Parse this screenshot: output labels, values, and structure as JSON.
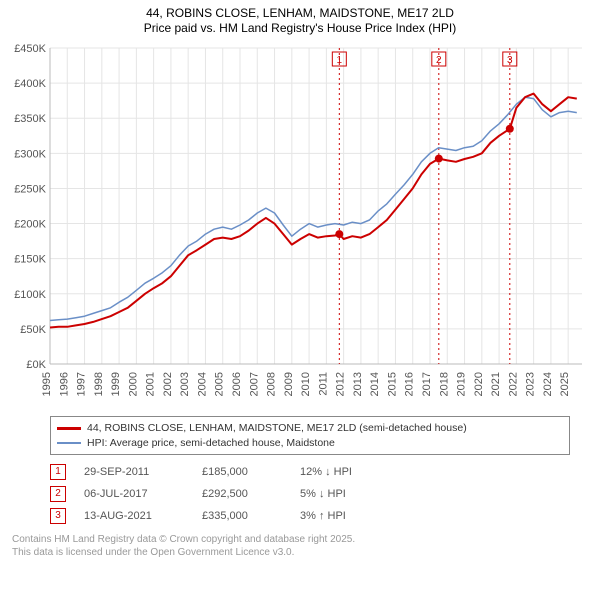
{
  "title": {
    "line1": "44, ROBINS CLOSE, LENHAM, MAIDSTONE, ME17 2LD",
    "line2": "Price paid vs. HM Land Registry's House Price Index (HPI)"
  },
  "chart": {
    "type": "line",
    "background_color": "#ffffff",
    "grid_color": "#e5e5e5",
    "axis_fontsize": 11,
    "xlim": [
      1995,
      2025.8
    ],
    "ylim": [
      0,
      450
    ],
    "ytick_step": 50,
    "y_prefix": "£",
    "y_suffix": "K",
    "x_ticks": [
      1995,
      1996,
      1997,
      1998,
      1999,
      2000,
      2001,
      2002,
      2003,
      2004,
      2005,
      2006,
      2007,
      2008,
      2009,
      2010,
      2011,
      2012,
      2013,
      2014,
      2015,
      2016,
      2017,
      2018,
      2019,
      2020,
      2021,
      2022,
      2023,
      2024,
      2025
    ],
    "series": [
      {
        "name": "price_paid",
        "color": "#cc0000",
        "width": 2,
        "legend": "44, ROBINS CLOSE, LENHAM, MAIDSTONE, ME17 2LD (semi-detached house)",
        "points": [
          [
            1995,
            52
          ],
          [
            1995.5,
            53
          ],
          [
            1996,
            53
          ],
          [
            1996.5,
            55
          ],
          [
            1997,
            57
          ],
          [
            1997.5,
            60
          ],
          [
            1998,
            64
          ],
          [
            1998.5,
            68
          ],
          [
            1999,
            74
          ],
          [
            1999.5,
            80
          ],
          [
            2000,
            90
          ],
          [
            2000.5,
            100
          ],
          [
            2001,
            108
          ],
          [
            2001.5,
            115
          ],
          [
            2002,
            125
          ],
          [
            2002.5,
            140
          ],
          [
            2003,
            155
          ],
          [
            2003.5,
            162
          ],
          [
            2004,
            170
          ],
          [
            2004.5,
            178
          ],
          [
            2005,
            180
          ],
          [
            2005.5,
            178
          ],
          [
            2006,
            182
          ],
          [
            2006.5,
            190
          ],
          [
            2007,
            200
          ],
          [
            2007.5,
            208
          ],
          [
            2008,
            200
          ],
          [
            2008.5,
            185
          ],
          [
            2009,
            170
          ],
          [
            2009.5,
            178
          ],
          [
            2010,
            185
          ],
          [
            2010.5,
            180
          ],
          [
            2011,
            182
          ],
          [
            2011.5,
            183
          ],
          [
            2011.75,
            185
          ],
          [
            2012,
            178
          ],
          [
            2012.5,
            182
          ],
          [
            2013,
            180
          ],
          [
            2013.5,
            185
          ],
          [
            2014,
            195
          ],
          [
            2014.5,
            205
          ],
          [
            2015,
            220
          ],
          [
            2015.5,
            235
          ],
          [
            2016,
            250
          ],
          [
            2016.5,
            270
          ],
          [
            2017,
            285
          ],
          [
            2017.51,
            292.5
          ],
          [
            2018,
            290
          ],
          [
            2018.5,
            288
          ],
          [
            2019,
            292
          ],
          [
            2019.5,
            295
          ],
          [
            2020,
            300
          ],
          [
            2020.5,
            315
          ],
          [
            2021,
            325
          ],
          [
            2021.62,
            335
          ],
          [
            2022,
            365
          ],
          [
            2022.5,
            380
          ],
          [
            2023,
            385
          ],
          [
            2023.5,
            370
          ],
          [
            2024,
            360
          ],
          [
            2024.5,
            370
          ],
          [
            2025,
            380
          ],
          [
            2025.5,
            378
          ]
        ]
      },
      {
        "name": "hpi",
        "color": "#6a8fc7",
        "width": 1.5,
        "legend": "HPI: Average price, semi-detached house, Maidstone",
        "points": [
          [
            1995,
            62
          ],
          [
            1995.5,
            63
          ],
          [
            1996,
            64
          ],
          [
            1996.5,
            66
          ],
          [
            1997,
            68
          ],
          [
            1997.5,
            72
          ],
          [
            1998,
            76
          ],
          [
            1998.5,
            80
          ],
          [
            1999,
            88
          ],
          [
            1999.5,
            95
          ],
          [
            2000,
            105
          ],
          [
            2000.5,
            115
          ],
          [
            2001,
            122
          ],
          [
            2001.5,
            130
          ],
          [
            2002,
            140
          ],
          [
            2002.5,
            155
          ],
          [
            2003,
            168
          ],
          [
            2003.5,
            175
          ],
          [
            2004,
            185
          ],
          [
            2004.5,
            192
          ],
          [
            2005,
            195
          ],
          [
            2005.5,
            192
          ],
          [
            2006,
            198
          ],
          [
            2006.5,
            205
          ],
          [
            2007,
            215
          ],
          [
            2007.5,
            222
          ],
          [
            2008,
            215
          ],
          [
            2008.5,
            198
          ],
          [
            2009,
            182
          ],
          [
            2009.5,
            192
          ],
          [
            2010,
            200
          ],
          [
            2010.5,
            195
          ],
          [
            2011,
            198
          ],
          [
            2011.5,
            200
          ],
          [
            2012,
            198
          ],
          [
            2012.5,
            202
          ],
          [
            2013,
            200
          ],
          [
            2013.5,
            205
          ],
          [
            2014,
            218
          ],
          [
            2014.5,
            228
          ],
          [
            2015,
            242
          ],
          [
            2015.5,
            255
          ],
          [
            2016,
            270
          ],
          [
            2016.5,
            288
          ],
          [
            2017,
            300
          ],
          [
            2017.5,
            308
          ],
          [
            2018,
            306
          ],
          [
            2018.5,
            304
          ],
          [
            2019,
            308
          ],
          [
            2019.5,
            310
          ],
          [
            2020,
            318
          ],
          [
            2020.5,
            332
          ],
          [
            2021,
            342
          ],
          [
            2021.5,
            355
          ],
          [
            2022,
            370
          ],
          [
            2022.5,
            380
          ],
          [
            2023,
            378
          ],
          [
            2023.5,
            362
          ],
          [
            2024,
            352
          ],
          [
            2024.5,
            358
          ],
          [
            2025,
            360
          ],
          [
            2025.5,
            358
          ]
        ]
      }
    ],
    "sale_markers": [
      {
        "id": "1",
        "x": 2011.75,
        "y": 185,
        "box_color": "#cc0000",
        "vline_color": "#cc0000"
      },
      {
        "id": "2",
        "x": 2017.51,
        "y": 292.5,
        "box_color": "#cc0000",
        "vline_color": "#cc0000"
      },
      {
        "id": "3",
        "x": 2021.62,
        "y": 335,
        "box_color": "#cc0000",
        "vline_color": "#cc0000"
      }
    ],
    "marker_dot_color": "#cc0000",
    "marker_dot_radius": 4
  },
  "sales_table": {
    "rows": [
      {
        "marker": "1",
        "date": "29-SEP-2011",
        "price": "£185,000",
        "pct": "12% ↓ HPI"
      },
      {
        "marker": "2",
        "date": "06-JUL-2017",
        "price": "£292,500",
        "pct": "5% ↓ HPI"
      },
      {
        "marker": "3",
        "date": "13-AUG-2021",
        "price": "£335,000",
        "pct": "3% ↑ HPI"
      }
    ]
  },
  "footer": {
    "line1": "Contains HM Land Registry data © Crown copyright and database right 2025.",
    "line2": "This data is licensed under the Open Government Licence v3.0."
  }
}
